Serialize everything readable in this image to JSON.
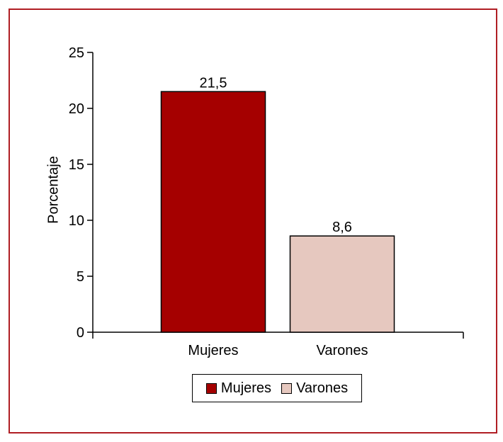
{
  "chart_data": {
    "type": "bar",
    "categories": [
      "Mujeres",
      "Varones"
    ],
    "values": [
      21.5,
      8.6
    ],
    "data_labels": [
      "21,5",
      "8,6"
    ],
    "colors": [
      "#a50000",
      "#e6c8bf"
    ],
    "ylabel": "Porcentaje",
    "ylim": [
      0,
      25
    ],
    "yticks": [
      0,
      5,
      10,
      15,
      20,
      25
    ],
    "grid": false,
    "legend": {
      "placement": "bottom-center",
      "items": [
        {
          "label": "Mujeres",
          "color": "#a50000"
        },
        {
          "label": "Varones",
          "color": "#e6c8bf"
        }
      ]
    }
  },
  "frame_color": "#b01e24"
}
